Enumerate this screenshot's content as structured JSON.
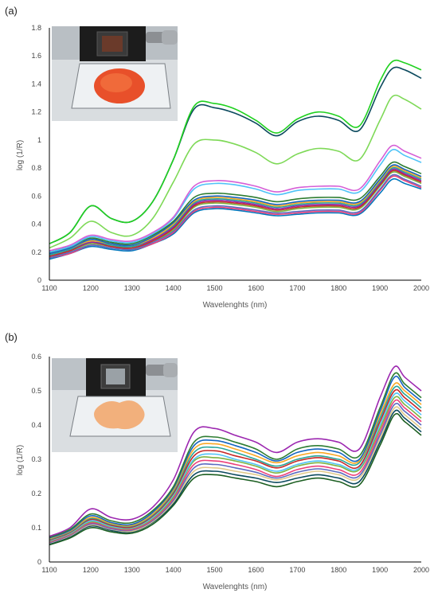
{
  "chart_data": [
    {
      "type": "line",
      "panel_label": "(a)",
      "title": "",
      "xlabel": "Wavelenghts (nm)",
      "ylabel": "log (1/R)",
      "xlim": [
        1100,
        2000
      ],
      "ylim": [
        0,
        1.8
      ],
      "x_ticks": [
        "1100",
        "1200",
        "1300",
        "1400",
        "1500",
        "1600",
        "1700",
        "1800",
        "1900",
        "2000"
      ],
      "y_ticks": [
        "0",
        "0.2",
        "0.4",
        "0.6",
        "0.8",
        "1",
        "1.2",
        "1.4",
        "1.6",
        "1.8"
      ],
      "grid": false,
      "legend": "none",
      "inset": {
        "content": "photo of red-orange granular sample on glass plate under instrument",
        "sample_color": "#e8502a"
      },
      "x": [
        1100,
        1150,
        1200,
        1250,
        1300,
        1350,
        1400,
        1450,
        1500,
        1550,
        1600,
        1650,
        1700,
        1750,
        1800,
        1850,
        1900,
        1930,
        1960,
        2000
      ],
      "series": [
        {
          "color": "#1fd11f",
          "values": [
            0.26,
            0.34,
            0.53,
            0.44,
            0.42,
            0.56,
            0.86,
            1.24,
            1.26,
            1.22,
            1.14,
            1.05,
            1.15,
            1.2,
            1.17,
            1.1,
            1.42,
            1.56,
            1.55,
            1.5
          ]
        },
        {
          "color": "#0c4a5e",
          "values": [
            0.26,
            0.34,
            0.53,
            0.44,
            0.42,
            0.56,
            0.86,
            1.22,
            1.23,
            1.19,
            1.12,
            1.03,
            1.13,
            1.17,
            1.14,
            1.07,
            1.37,
            1.51,
            1.5,
            1.44
          ]
        },
        {
          "color": "#7ed957",
          "values": [
            0.23,
            0.3,
            0.42,
            0.34,
            0.32,
            0.44,
            0.7,
            0.97,
            1.0,
            0.97,
            0.91,
            0.83,
            0.9,
            0.94,
            0.92,
            0.86,
            1.14,
            1.31,
            1.29,
            1.22
          ]
        },
        {
          "color": "#d65fd6",
          "values": [
            0.21,
            0.25,
            0.32,
            0.29,
            0.28,
            0.34,
            0.45,
            0.67,
            0.71,
            0.7,
            0.67,
            0.63,
            0.66,
            0.67,
            0.67,
            0.65,
            0.85,
            0.96,
            0.92,
            0.87
          ]
        },
        {
          "color": "#4fc3f7",
          "values": [
            0.2,
            0.24,
            0.31,
            0.28,
            0.27,
            0.33,
            0.44,
            0.65,
            0.69,
            0.68,
            0.65,
            0.61,
            0.64,
            0.65,
            0.65,
            0.63,
            0.82,
            0.93,
            0.89,
            0.84
          ]
        },
        {
          "color": "#2e7d32",
          "values": [
            0.2,
            0.24,
            0.3,
            0.27,
            0.26,
            0.32,
            0.42,
            0.59,
            0.62,
            0.61,
            0.59,
            0.56,
            0.58,
            0.59,
            0.59,
            0.58,
            0.74,
            0.84,
            0.81,
            0.76
          ]
        },
        {
          "color": "#1565c0",
          "values": [
            0.19,
            0.23,
            0.29,
            0.26,
            0.25,
            0.31,
            0.41,
            0.57,
            0.6,
            0.59,
            0.57,
            0.54,
            0.56,
            0.57,
            0.57,
            0.56,
            0.72,
            0.82,
            0.79,
            0.74
          ]
        },
        {
          "color": "#f9a825",
          "values": [
            0.19,
            0.23,
            0.28,
            0.26,
            0.25,
            0.3,
            0.4,
            0.56,
            0.59,
            0.58,
            0.56,
            0.53,
            0.55,
            0.56,
            0.56,
            0.55,
            0.71,
            0.81,
            0.78,
            0.73
          ]
        },
        {
          "color": "#26a69a",
          "values": [
            0.18,
            0.22,
            0.28,
            0.25,
            0.24,
            0.3,
            0.39,
            0.55,
            0.58,
            0.57,
            0.55,
            0.52,
            0.54,
            0.55,
            0.55,
            0.54,
            0.7,
            0.8,
            0.77,
            0.72
          ]
        },
        {
          "color": "#8e24aa",
          "values": [
            0.18,
            0.22,
            0.27,
            0.25,
            0.24,
            0.29,
            0.38,
            0.54,
            0.57,
            0.56,
            0.54,
            0.51,
            0.53,
            0.54,
            0.54,
            0.53,
            0.69,
            0.79,
            0.76,
            0.71
          ]
        },
        {
          "color": "#c62828",
          "values": [
            0.17,
            0.21,
            0.27,
            0.24,
            0.23,
            0.28,
            0.37,
            0.53,
            0.56,
            0.55,
            0.53,
            0.5,
            0.52,
            0.53,
            0.53,
            0.52,
            0.68,
            0.78,
            0.75,
            0.7
          ]
        },
        {
          "color": "#7cb342",
          "values": [
            0.17,
            0.21,
            0.26,
            0.24,
            0.23,
            0.28,
            0.36,
            0.52,
            0.55,
            0.54,
            0.52,
            0.49,
            0.51,
            0.52,
            0.52,
            0.51,
            0.67,
            0.77,
            0.74,
            0.69
          ]
        },
        {
          "color": "#5c6bc0",
          "values": [
            0.16,
            0.2,
            0.25,
            0.23,
            0.22,
            0.27,
            0.35,
            0.5,
            0.53,
            0.52,
            0.5,
            0.48,
            0.49,
            0.5,
            0.5,
            0.49,
            0.65,
            0.75,
            0.72,
            0.67
          ]
        },
        {
          "color": "#ec407a",
          "values": [
            0.16,
            0.19,
            0.25,
            0.23,
            0.22,
            0.26,
            0.34,
            0.49,
            0.52,
            0.51,
            0.49,
            0.47,
            0.48,
            0.49,
            0.49,
            0.48,
            0.64,
            0.74,
            0.71,
            0.66
          ]
        },
        {
          "color": "#0277bd",
          "values": [
            0.15,
            0.19,
            0.24,
            0.22,
            0.21,
            0.26,
            0.33,
            0.48,
            0.51,
            0.5,
            0.48,
            0.46,
            0.47,
            0.48,
            0.48,
            0.47,
            0.62,
            0.72,
            0.69,
            0.65
          ]
        }
      ]
    },
    {
      "type": "line",
      "panel_label": "(b)",
      "title": "",
      "xlabel": "Wavelenghts (nm)",
      "ylabel": "log (1/R)",
      "xlim": [
        1100,
        2000
      ],
      "ylim": [
        0,
        0.6
      ],
      "x_ticks": [
        "1100",
        "1200",
        "1300",
        "1400",
        "1500",
        "1600",
        "1700",
        "1800",
        "1900",
        "2000"
      ],
      "y_ticks": [
        "0",
        "0.1",
        "0.2",
        "0.3",
        "0.4",
        "0.5",
        "0.6"
      ],
      "grid": false,
      "legend": "none",
      "inset": {
        "content": "photo of peach-colored powder sample on glass plate under instrument",
        "sample_color": "#f2b07c"
      },
      "x": [
        1100,
        1150,
        1200,
        1250,
        1300,
        1350,
        1400,
        1450,
        1500,
        1550,
        1600,
        1650,
        1700,
        1750,
        1800,
        1850,
        1900,
        1935,
        1960,
        2000
      ],
      "series": [
        {
          "color": "#9c27b0",
          "values": [
            0.075,
            0.1,
            0.155,
            0.13,
            0.125,
            0.16,
            0.24,
            0.38,
            0.39,
            0.37,
            0.35,
            0.32,
            0.35,
            0.36,
            0.35,
            0.33,
            0.48,
            0.57,
            0.54,
            0.5
          ]
        },
        {
          "color": "#2e7d32",
          "values": [
            0.072,
            0.095,
            0.14,
            0.12,
            0.115,
            0.15,
            0.22,
            0.35,
            0.365,
            0.35,
            0.33,
            0.3,
            0.33,
            0.34,
            0.33,
            0.31,
            0.45,
            0.55,
            0.52,
            0.48
          ]
        },
        {
          "color": "#1565c0",
          "values": [
            0.07,
            0.092,
            0.135,
            0.115,
            0.11,
            0.145,
            0.215,
            0.34,
            0.355,
            0.34,
            0.32,
            0.295,
            0.32,
            0.33,
            0.32,
            0.3,
            0.44,
            0.54,
            0.51,
            0.47
          ]
        },
        {
          "color": "#f9a825",
          "values": [
            0.068,
            0.09,
            0.13,
            0.112,
            0.107,
            0.14,
            0.21,
            0.33,
            0.345,
            0.33,
            0.31,
            0.29,
            0.31,
            0.32,
            0.31,
            0.295,
            0.43,
            0.52,
            0.5,
            0.46
          ]
        },
        {
          "color": "#26a69a",
          "values": [
            0.066,
            0.088,
            0.127,
            0.11,
            0.105,
            0.137,
            0.205,
            0.32,
            0.335,
            0.32,
            0.3,
            0.28,
            0.3,
            0.31,
            0.3,
            0.29,
            0.42,
            0.51,
            0.49,
            0.45
          ]
        },
        {
          "color": "#c62828",
          "values": [
            0.064,
            0.086,
            0.124,
            0.107,
            0.102,
            0.134,
            0.2,
            0.31,
            0.325,
            0.31,
            0.295,
            0.275,
            0.295,
            0.305,
            0.295,
            0.28,
            0.41,
            0.5,
            0.48,
            0.44
          ]
        },
        {
          "color": "#4fc3f7",
          "values": [
            0.062,
            0.084,
            0.12,
            0.104,
            0.1,
            0.13,
            0.195,
            0.3,
            0.315,
            0.3,
            0.285,
            0.265,
            0.285,
            0.295,
            0.285,
            0.275,
            0.4,
            0.49,
            0.47,
            0.43
          ]
        },
        {
          "color": "#7cb342",
          "values": [
            0.06,
            0.082,
            0.117,
            0.102,
            0.098,
            0.127,
            0.19,
            0.295,
            0.305,
            0.295,
            0.28,
            0.26,
            0.28,
            0.29,
            0.28,
            0.27,
            0.39,
            0.48,
            0.46,
            0.42
          ]
        },
        {
          "color": "#ec407a",
          "values": [
            0.058,
            0.08,
            0.114,
            0.1,
            0.095,
            0.124,
            0.185,
            0.285,
            0.295,
            0.285,
            0.27,
            0.25,
            0.27,
            0.28,
            0.27,
            0.26,
            0.38,
            0.47,
            0.45,
            0.41
          ]
        },
        {
          "color": "#5c6bc0",
          "values": [
            0.056,
            0.078,
            0.111,
            0.097,
            0.093,
            0.121,
            0.18,
            0.275,
            0.285,
            0.275,
            0.262,
            0.245,
            0.262,
            0.272,
            0.262,
            0.252,
            0.37,
            0.46,
            0.44,
            0.4
          ]
        },
        {
          "color": "#e0c98a",
          "values": [
            0.055,
            0.076,
            0.108,
            0.095,
            0.09,
            0.118,
            0.175,
            0.265,
            0.275,
            0.265,
            0.255,
            0.24,
            0.255,
            0.265,
            0.255,
            0.245,
            0.36,
            0.45,
            0.43,
            0.39
          ]
        },
        {
          "color": "#0c4a5e",
          "values": [
            0.053,
            0.074,
            0.105,
            0.092,
            0.088,
            0.115,
            0.17,
            0.255,
            0.265,
            0.255,
            0.245,
            0.232,
            0.245,
            0.255,
            0.245,
            0.235,
            0.35,
            0.44,
            0.42,
            0.38
          ]
        },
        {
          "color": "#1b5e20",
          "values": [
            0.05,
            0.07,
            0.1,
            0.088,
            0.084,
            0.11,
            0.165,
            0.245,
            0.255,
            0.245,
            0.235,
            0.22,
            0.235,
            0.245,
            0.235,
            0.225,
            0.34,
            0.43,
            0.41,
            0.37
          ]
        }
      ]
    }
  ]
}
